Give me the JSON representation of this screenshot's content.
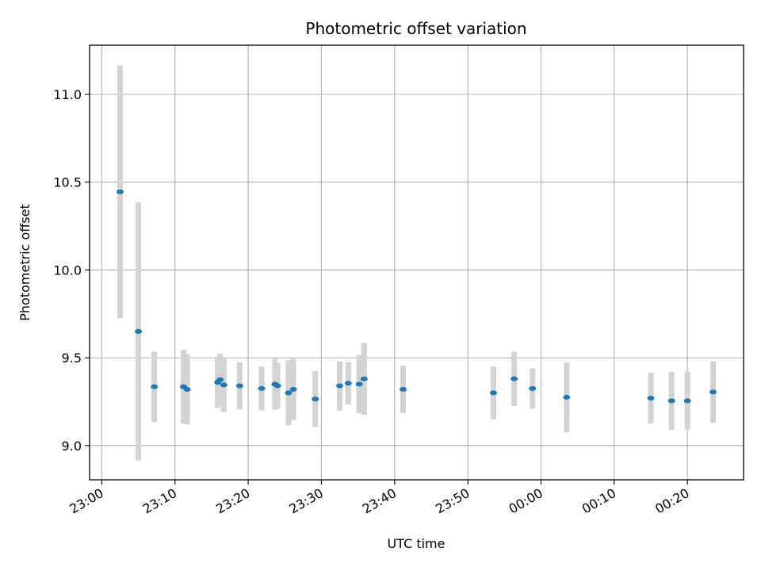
{
  "chart_data": {
    "type": "scatter",
    "title": "Photometric offset variation",
    "xlabel": "UTC time",
    "ylabel": "Photometric offset",
    "x_unit": "UTC time of day (HH:MM)",
    "xlim": [
      "22:58:20",
      "00:27:40"
    ],
    "ylim": [
      8.805,
      11.28
    ],
    "grid": true,
    "x_ticks": [
      "23:00",
      "23:10",
      "23:20",
      "23:30",
      "23:40",
      "23:50",
      "00:00",
      "00:10",
      "00:20"
    ],
    "y_ticks": [
      9.0,
      9.5,
      10.0,
      10.5,
      11.0
    ],
    "y_tick_labels": [
      "9.0",
      "9.5",
      "10.0",
      "10.5",
      "11.0"
    ],
    "marker_color": "#1f77b4",
    "errorbar_color": "#d3d3d3",
    "points": [
      {
        "t": "23:02:30",
        "y": 10.445,
        "err": 0.72
      },
      {
        "t": "23:05:00",
        "y": 9.65,
        "err": 0.735
      },
      {
        "t": "23:07:10",
        "y": 9.335,
        "err": 0.2
      },
      {
        "t": "23:11:10",
        "y": 9.335,
        "err": 0.21
      },
      {
        "t": "23:11:40",
        "y": 9.32,
        "err": 0.2
      },
      {
        "t": "23:15:50",
        "y": 9.36,
        "err": 0.145
      },
      {
        "t": "23:16:10",
        "y": 9.375,
        "err": 0.15
      },
      {
        "t": "23:16:40",
        "y": 9.345,
        "err": 0.155
      },
      {
        "t": "23:18:50",
        "y": 9.34,
        "err": 0.135
      },
      {
        "t": "23:21:50",
        "y": 9.325,
        "err": 0.125
      },
      {
        "t": "23:23:40",
        "y": 9.35,
        "err": 0.145
      },
      {
        "t": "23:24:00",
        "y": 9.34,
        "err": 0.13
      },
      {
        "t": "23:25:30",
        "y": 9.3,
        "err": 0.185
      },
      {
        "t": "23:26:10",
        "y": 9.32,
        "err": 0.175
      },
      {
        "t": "23:29:10",
        "y": 9.265,
        "err": 0.16
      },
      {
        "t": "23:32:30",
        "y": 9.34,
        "err": 0.14
      },
      {
        "t": "23:33:40",
        "y": 9.355,
        "err": 0.12
      },
      {
        "t": "23:35:10",
        "y": 9.35,
        "err": 0.165
      },
      {
        "t": "23:35:50",
        "y": 9.38,
        "err": 0.205
      },
      {
        "t": "23:41:10",
        "y": 9.32,
        "err": 0.135
      },
      {
        "t": "23:53:30",
        "y": 9.3,
        "err": 0.15
      },
      {
        "t": "23:56:20",
        "y": 9.38,
        "err": 0.155
      },
      {
        "t": "23:58:50",
        "y": 9.325,
        "err": 0.115
      },
      {
        "t": "00:03:30",
        "y": 9.275,
        "err": 0.2
      },
      {
        "t": "00:15:00",
        "y": 9.27,
        "err": 0.145
      },
      {
        "t": "00:17:50",
        "y": 9.255,
        "err": 0.165
      },
      {
        "t": "00:20:00",
        "y": 9.255,
        "err": 0.165
      },
      {
        "t": "00:23:30",
        "y": 9.305,
        "err": 0.175
      }
    ]
  }
}
